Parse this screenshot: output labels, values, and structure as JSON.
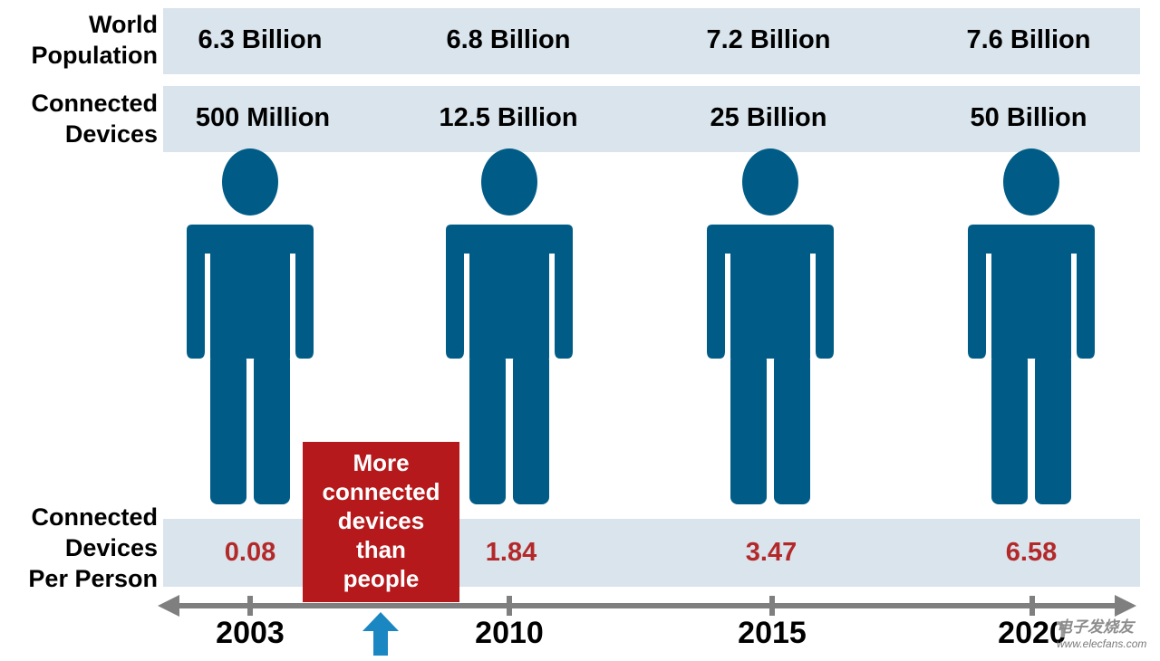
{
  "row_labels": {
    "world_population": [
      "World",
      "Population"
    ],
    "connected_devices": [
      "Connected",
      "Devices"
    ],
    "per_person": [
      "Connected",
      "Devices",
      "Per Person"
    ]
  },
  "columns": [
    {
      "year": "2003",
      "population": "6.3 Billion",
      "devices": "500 Million",
      "per_person": "0.08"
    },
    {
      "year": "2010",
      "population": "6.8 Billion",
      "devices": "12.5 Billion",
      "per_person": "1.84"
    },
    {
      "year": "2015",
      "population": "7.2 Billion",
      "devices": "25 Billion",
      "per_person": "3.47"
    },
    {
      "year": "2020",
      "population": "7.6 Billion",
      "devices": "50 Billion",
      "per_person": "6.58"
    }
  ],
  "callout": [
    "More",
    "connected",
    "devices",
    "than",
    "people"
  ],
  "watermark": {
    "text": "电子发烧友",
    "url": "www.elecfans.com"
  },
  "colors": {
    "figure": "#005c87",
    "band": "#d9e4ec",
    "ratio_text": "#b3292a",
    "callout_bg": "#b5191b",
    "arrow_up": "#1b87c2",
    "axis": "#7f7f7f"
  }
}
